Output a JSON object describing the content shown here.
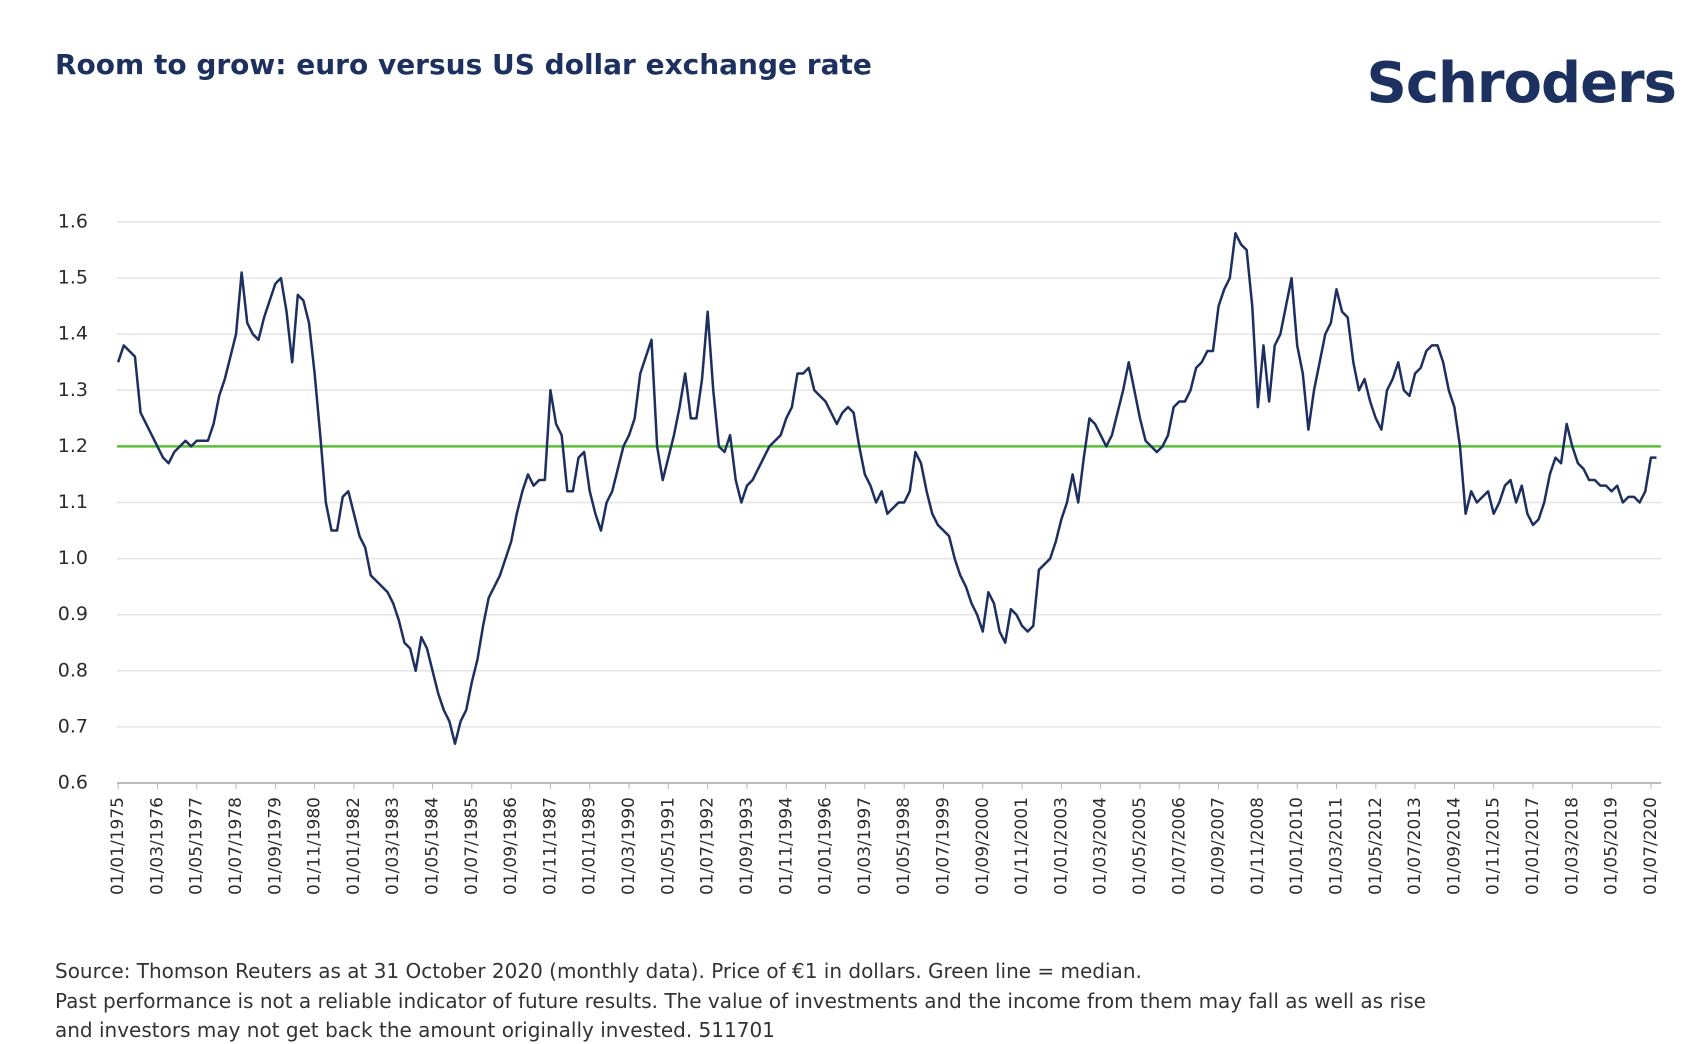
{
  "chart_data": {
    "type": "line",
    "title": "Room to grow: euro versus US dollar exchange rate",
    "brand": "Schroders",
    "notes": [
      "Source: Thomson Reuters as at 31 October 2020 (monthly data). Price of €1 in dollars. Green line = median.",
      "Past performance is not a reliable indicator of future results. The value of investments and the income from them may fall as well as rise",
      "and investors may not get back the amount originally invested. 511701"
    ],
    "categories": [
      "01/01/1975",
      null,
      null,
      null,
      null,
      null,
      null,
      "01/03/1976",
      null,
      null,
      null,
      null,
      null,
      null,
      "01/05/1977",
      null,
      null,
      null,
      null,
      null,
      null,
      "01/07/1978",
      null,
      null,
      null,
      null,
      null,
      null,
      "01/09/1979",
      null,
      null,
      null,
      null,
      null,
      null,
      "01/11/1980",
      null,
      null,
      null,
      null,
      null,
      null,
      "01/01/1982",
      null,
      null,
      null,
      null,
      null,
      null,
      "01/03/1983",
      null,
      null,
      null,
      null,
      null,
      null,
      "01/05/1984",
      null,
      null,
      null,
      null,
      null,
      null,
      "01/07/1985",
      null,
      null,
      null,
      null,
      null,
      null,
      "01/09/1986",
      null,
      null,
      null,
      null,
      null,
      null,
      "01/11/1987",
      null,
      null,
      null,
      null,
      null,
      null,
      "01/01/1989",
      null,
      null,
      null,
      null,
      null,
      null,
      "01/03/1990",
      null,
      null,
      null,
      null,
      null,
      null,
      "01/05/1991",
      null,
      null,
      null,
      null,
      null,
      null,
      "01/07/1992",
      null,
      null,
      null,
      null,
      null,
      null,
      "01/09/1993",
      null,
      null,
      null,
      null,
      null,
      null,
      "01/11/1994",
      null,
      null,
      null,
      null,
      null,
      null,
      "01/01/1996",
      null,
      null,
      null,
      null,
      null,
      null,
      "01/03/1997",
      null,
      null,
      null,
      null,
      null,
      null,
      "01/05/1998",
      null,
      null,
      null,
      null,
      null,
      null,
      "01/07/1999",
      null,
      null,
      null,
      null,
      null,
      null,
      "01/09/2000",
      null,
      null,
      null,
      null,
      null,
      null,
      "01/11/2001",
      null,
      null,
      null,
      null,
      null,
      null,
      "01/01/2003",
      null,
      null,
      null,
      null,
      null,
      null,
      "01/03/2004",
      null,
      null,
      null,
      null,
      null,
      null,
      "01/05/2005",
      null,
      null,
      null,
      null,
      null,
      null,
      "01/07/2006",
      null,
      null,
      null,
      null,
      null,
      null,
      "01/09/2007",
      null,
      null,
      null,
      null,
      null,
      null,
      "01/11/2008",
      null,
      null,
      null,
      null,
      null,
      null,
      "01/01/2010",
      null,
      null,
      null,
      null,
      null,
      null,
      "01/03/2011",
      null,
      null,
      null,
      null,
      null,
      null,
      "01/05/2012",
      null,
      null,
      null,
      null,
      null,
      null,
      "01/07/2013",
      null,
      null,
      null,
      null,
      null,
      null,
      "01/09/2014",
      null,
      null,
      null,
      null,
      null,
      null,
      "01/11/2015",
      null,
      null,
      null,
      null,
      null,
      null,
      "01/01/2017",
      null,
      null,
      null,
      null,
      null,
      null,
      "01/03/2018",
      null,
      null,
      null,
      null,
      null,
      null,
      "01/05/2019",
      null,
      null,
      null,
      null,
      null,
      null,
      "01/07/2020",
      null
    ],
    "values": [
      1.35,
      1.38,
      1.37,
      1.36,
      1.26,
      1.24,
      1.22,
      1.2,
      1.18,
      1.17,
      1.19,
      1.2,
      1.21,
      1.2,
      1.21,
      1.21,
      1.21,
      1.24,
      1.29,
      1.32,
      1.36,
      1.4,
      1.51,
      1.42,
      1.4,
      1.39,
      1.43,
      1.46,
      1.49,
      1.5,
      1.44,
      1.35,
      1.47,
      1.46,
      1.42,
      1.33,
      1.22,
      1.1,
      1.05,
      1.05,
      1.11,
      1.12,
      1.08,
      1.04,
      1.02,
      0.97,
      0.96,
      0.95,
      0.94,
      0.92,
      0.89,
      0.85,
      0.84,
      0.8,
      0.86,
      0.84,
      0.8,
      0.76,
      0.73,
      0.71,
      0.67,
      0.71,
      0.73,
      0.78,
      0.82,
      0.88,
      0.93,
      0.95,
      0.97,
      1.0,
      1.03,
      1.08,
      1.12,
      1.15,
      1.13,
      1.14,
      1.14,
      1.3,
      1.24,
      1.22,
      1.12,
      1.12,
      1.18,
      1.19,
      1.12,
      1.08,
      1.05,
      1.1,
      1.12,
      1.16,
      1.2,
      1.22,
      1.25,
      1.33,
      1.36,
      1.39,
      1.2,
      1.14,
      1.18,
      1.22,
      1.27,
      1.33,
      1.25,
      1.25,
      1.32,
      1.44,
      1.3,
      1.2,
      1.19,
      1.22,
      1.14,
      1.1,
      1.13,
      1.14,
      1.16,
      1.18,
      1.2,
      1.21,
      1.22,
      1.25,
      1.27,
      1.33,
      1.33,
      1.34,
      1.3,
      1.29,
      1.28,
      1.26,
      1.24,
      1.26,
      1.27,
      1.26,
      1.2,
      1.15,
      1.13,
      1.1,
      1.12,
      1.08,
      1.09,
      1.1,
      1.1,
      1.12,
      1.19,
      1.17,
      1.12,
      1.08,
      1.06,
      1.05,
      1.04,
      1.0,
      0.97,
      0.95,
      0.92,
      0.9,
      0.87,
      0.94,
      0.92,
      0.87,
      0.85,
      0.91,
      0.9,
      0.88,
      0.87,
      0.88,
      0.98,
      0.99,
      1.0,
      1.03,
      1.07,
      1.1,
      1.15,
      1.1,
      1.18,
      1.25,
      1.24,
      1.22,
      1.2,
      1.22,
      1.26,
      1.3,
      1.35,
      1.3,
      1.25,
      1.21,
      1.2,
      1.19,
      1.2,
      1.22,
      1.27,
      1.28,
      1.28,
      1.3,
      1.34,
      1.35,
      1.37,
      1.37,
      1.45,
      1.48,
      1.5,
      1.58,
      1.56,
      1.55,
      1.45,
      1.27,
      1.38,
      1.28,
      1.38,
      1.4,
      1.45,
      1.5,
      1.38,
      1.33,
      1.23,
      1.3,
      1.35,
      1.4,
      1.42,
      1.48,
      1.44,
      1.43,
      1.35,
      1.3,
      1.32,
      1.28,
      1.25,
      1.23,
      1.3,
      1.32,
      1.35,
      1.3,
      1.29,
      1.33,
      1.34,
      1.37,
      1.38,
      1.38,
      1.35,
      1.3,
      1.27,
      1.2,
      1.08,
      1.12,
      1.1,
      1.11,
      1.12,
      1.08,
      1.1,
      1.13,
      1.14,
      1.1,
      1.13,
      1.08,
      1.06,
      1.07,
      1.1,
      1.15,
      1.18,
      1.17,
      1.24,
      1.2,
      1.17,
      1.16,
      1.14,
      1.14,
      1.13,
      1.13,
      1.12,
      1.13,
      1.1,
      1.11,
      1.11,
      1.1,
      1.12,
      1.18,
      1.18
    ],
    "color": "#1c2f5e",
    "median": {
      "value": 1.2,
      "color": "#5cbf3a"
    },
    "ylim": [
      0.6,
      1.6
    ],
    "yticks": [
      {
        "value": 0.6,
        "label": "0.6"
      },
      {
        "value": 0.7,
        "label": "0.7"
      },
      {
        "value": 0.8,
        "label": "0.8"
      },
      {
        "value": 0.9,
        "label": "0.9"
      },
      {
        "value": 1.0,
        "label": "1.0"
      },
      {
        "value": 1.1,
        "label": "1.1"
      },
      {
        "value": 1.2,
        "label": "1.2"
      },
      {
        "value": 1.3,
        "label": "1.3"
      },
      {
        "value": 1.4,
        "label": "1.4"
      },
      {
        "value": 1.5,
        "label": "1.5"
      },
      {
        "value": 1.6,
        "label": "1.6"
      }
    ],
    "grid": true
  }
}
